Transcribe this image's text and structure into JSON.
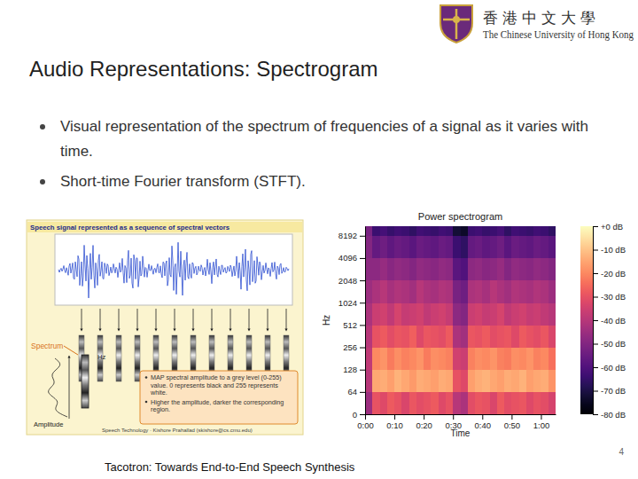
{
  "header": {
    "logo_chinese": "香港中文大學",
    "logo_english": "The Chinese University of Hong Kong"
  },
  "title": "Audio Representations: Spectrogram",
  "bullets": [
    "Visual representation of the spectrum of frequencies of a signal as it varies with time.",
    "Short-time Fourier transform (STFT)."
  ],
  "figure_left": {
    "header": "Speech signal represented as a sequence of spectral vectors",
    "spectrum_label": "Spectrum",
    "hz_label": "Hz",
    "amplitude_label": "Amplitude",
    "notes": [
      "MAP spectral amplitude to a grey level (0-255) value. 0 represents black and 255 represents white.",
      "Higher the amplitude, darker the corresponding region."
    ],
    "credit": "Speech Technology · Kishore Prahallad (skishore@cs.cmu.edu)"
  },
  "chart_data": {
    "type": "heatmap",
    "title": "Power spectrogram",
    "x_label": "Time",
    "y_label": "Hz",
    "xlim": [
      0,
      65
    ],
    "xticks": [
      {
        "value": 0,
        "label": "0:00"
      },
      {
        "value": 10,
        "label": "0:10"
      },
      {
        "value": 20,
        "label": "0:20"
      },
      {
        "value": 30,
        "label": "0:30"
      },
      {
        "value": 40,
        "label": "0:40"
      },
      {
        "value": 50,
        "label": "0:50"
      },
      {
        "value": 60,
        "label": "1:00"
      }
    ],
    "ylim": [
      0,
      11025
    ],
    "yticks": [
      0,
      64,
      128,
      256,
      512,
      1024,
      2048,
      4096,
      8192
    ],
    "log": "y",
    "x_edges": [
      0,
      2.5,
      5,
      7.5,
      10,
      12.5,
      15,
      17.5,
      20,
      22.5,
      25,
      27.5,
      30,
      32.5,
      35,
      37.5,
      40,
      42.5,
      45,
      47.5,
      50,
      52.5,
      55,
      57.5,
      60,
      62.5,
      65
    ],
    "y_edges": [
      0,
      64,
      128,
      256,
      512,
      1024,
      2048,
      4096,
      8192,
      11025
    ],
    "cells": [
      [
        -45,
        -30,
        -32,
        -28,
        -30,
        -33,
        -29,
        -31,
        -30,
        -28,
        -32,
        -30,
        -40,
        -42,
        -31,
        -29,
        -30,
        -33,
        -28,
        -31,
        -30,
        -29,
        -32,
        -30,
        -31,
        -34
      ],
      [
        -40,
        -15,
        -14,
        -16,
        -13,
        -15,
        -17,
        -14,
        -15,
        -16,
        -14,
        -15,
        -30,
        -32,
        -16,
        -14,
        -13,
        -15,
        -16,
        -14,
        -15,
        -13,
        -16,
        -15,
        -14,
        -18
      ],
      [
        -38,
        -20,
        -18,
        -22,
        -19,
        -21,
        -20,
        -18,
        -22,
        -19,
        -20,
        -21,
        -35,
        -36,
        -21,
        -19,
        -20,
        -18,
        -21,
        -22,
        -19,
        -20,
        -18,
        -21,
        -20,
        -24
      ],
      [
        -40,
        -30,
        -28,
        -31,
        -29,
        -30,
        -27,
        -32,
        -29,
        -30,
        -31,
        -28,
        -42,
        -44,
        -29,
        -30,
        -28,
        -31,
        -30,
        -29,
        -32,
        -28,
        -30,
        -31,
        -29,
        -33
      ],
      [
        -42,
        -36,
        -35,
        -38,
        -34,
        -37,
        -36,
        -35,
        -38,
        -36,
        -35,
        -37,
        -48,
        -50,
        -36,
        -35,
        -37,
        -36,
        -34,
        -38,
        -36,
        -35,
        -37,
        -36,
        -38,
        -40
      ],
      [
        -45,
        -42,
        -40,
        -43,
        -41,
        -42,
        -44,
        -40,
        -42,
        -43,
        -41,
        -42,
        -52,
        -54,
        -42,
        -41,
        -43,
        -40,
        -42,
        -44,
        -41,
        -42,
        -43,
        -41,
        -42,
        -45
      ],
      [
        -48,
        -48,
        -46,
        -49,
        -47,
        -48,
        -50,
        -47,
        -48,
        -49,
        -47,
        -48,
        -58,
        -60,
        -48,
        -47,
        -49,
        -48,
        -46,
        -50,
        -47,
        -48,
        -49,
        -47,
        -48,
        -50
      ],
      [
        -50,
        -56,
        -54,
        -57,
        -55,
        -56,
        -58,
        -55,
        -56,
        -57,
        -55,
        -56,
        -64,
        -66,
        -56,
        -55,
        -57,
        -56,
        -54,
        -58,
        -55,
        -56,
        -57,
        -55,
        -56,
        -58
      ],
      [
        -52,
        -64,
        -62,
        -65,
        -63,
        -64,
        -66,
        -63,
        -64,
        -65,
        -63,
        -64,
        -72,
        -74,
        -64,
        -63,
        -65,
        -64,
        -62,
        -66,
        -63,
        -64,
        -65,
        -63,
        -64,
        -66
      ]
    ],
    "colorbar_range": [
      -80,
      0
    ],
    "colorbar_ticks": [
      {
        "value": 0,
        "label": "+0 dB"
      },
      {
        "value": -10,
        "label": "-10 dB"
      },
      {
        "value": -20,
        "label": "-20 dB"
      },
      {
        "value": -30,
        "label": "-30 dB"
      },
      {
        "value": -40,
        "label": "-40 dB"
      },
      {
        "value": -50,
        "label": "-50 dB"
      },
      {
        "value": -60,
        "label": "-60 dB"
      },
      {
        "value": -70,
        "label": "-70 dB"
      },
      {
        "value": -80,
        "label": "-80 dB"
      }
    ]
  },
  "caption": "Tacotron: Towards End-to-End Speech Synthesis",
  "page_number": 4
}
